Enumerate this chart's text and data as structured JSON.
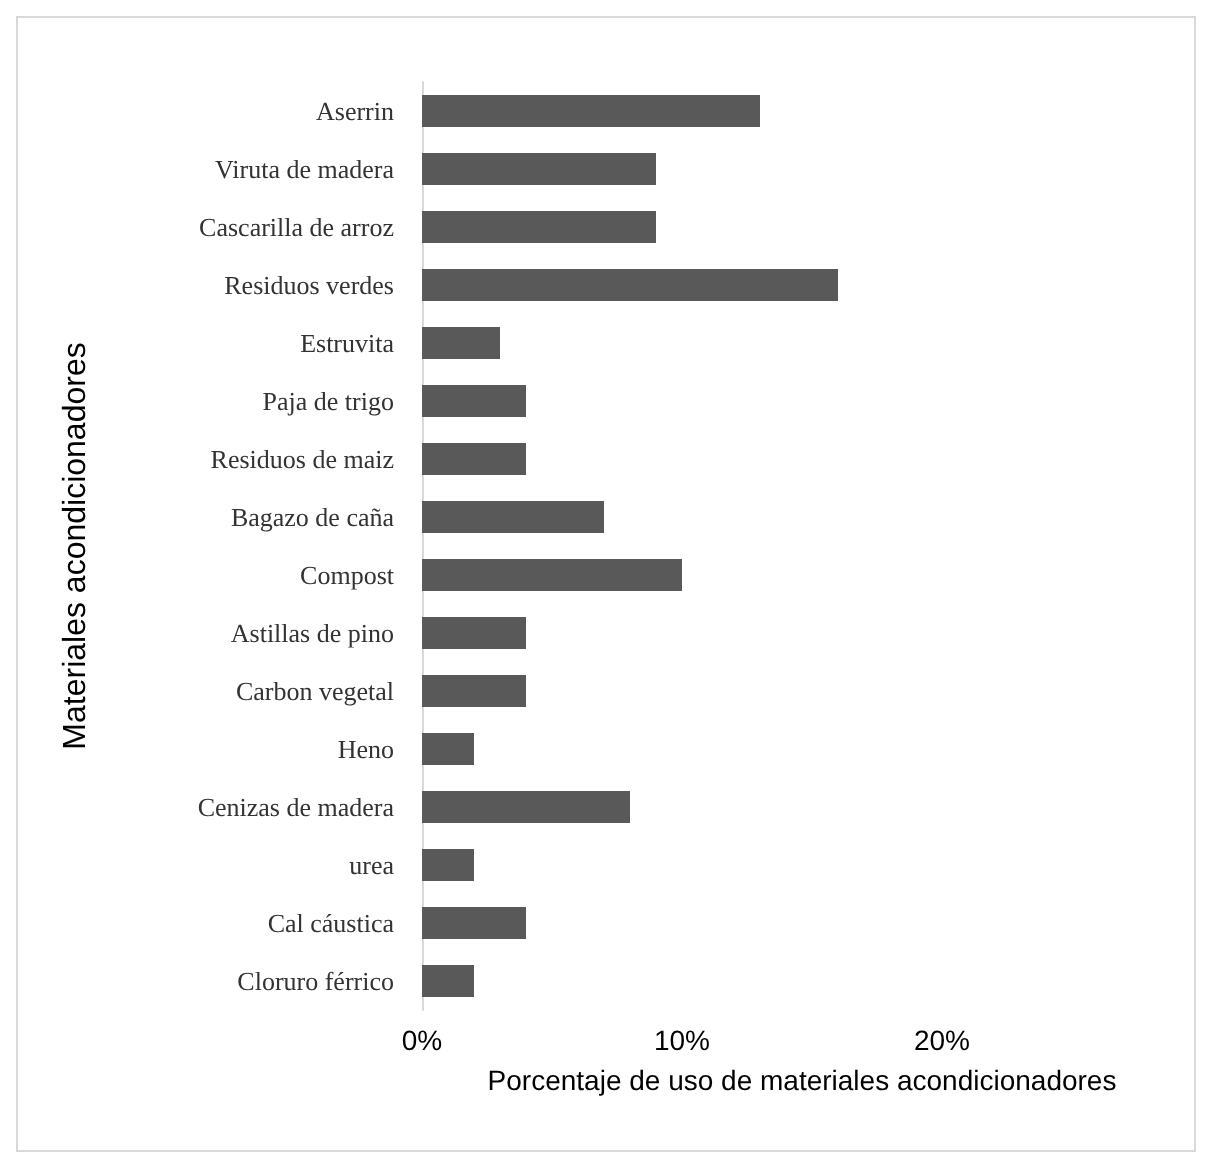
{
  "chart_data": {
    "type": "bar",
    "orientation": "horizontal",
    "ylabel": "Materiales acondicionadores",
    "xlabel": "Porcentaje de uso de materiales acondicionadores",
    "categories": [
      "Aserrin",
      "Viruta de madera",
      "Cascarilla de arroz",
      "Residuos verdes",
      "Estruvita",
      "Paja de trigo",
      "Residuos de maiz",
      "Bagazo de caña",
      "Compost",
      "Astillas de pino",
      "Carbon vegetal",
      "Heno",
      "Cenizas de madera",
      "urea",
      "Cal cáustica",
      "Cloruro férrico"
    ],
    "values": [
      13,
      9,
      9,
      16,
      3,
      4,
      4,
      7,
      10,
      4,
      4,
      2,
      8,
      2,
      4,
      2
    ],
    "color": "#595959",
    "xlim": [
      0,
      20
    ],
    "xticks": [
      {
        "value": 0,
        "label": "0%"
      },
      {
        "value": 10,
        "label": "10%"
      },
      {
        "value": 20,
        "label": "20%"
      }
    ],
    "grid": false
  }
}
